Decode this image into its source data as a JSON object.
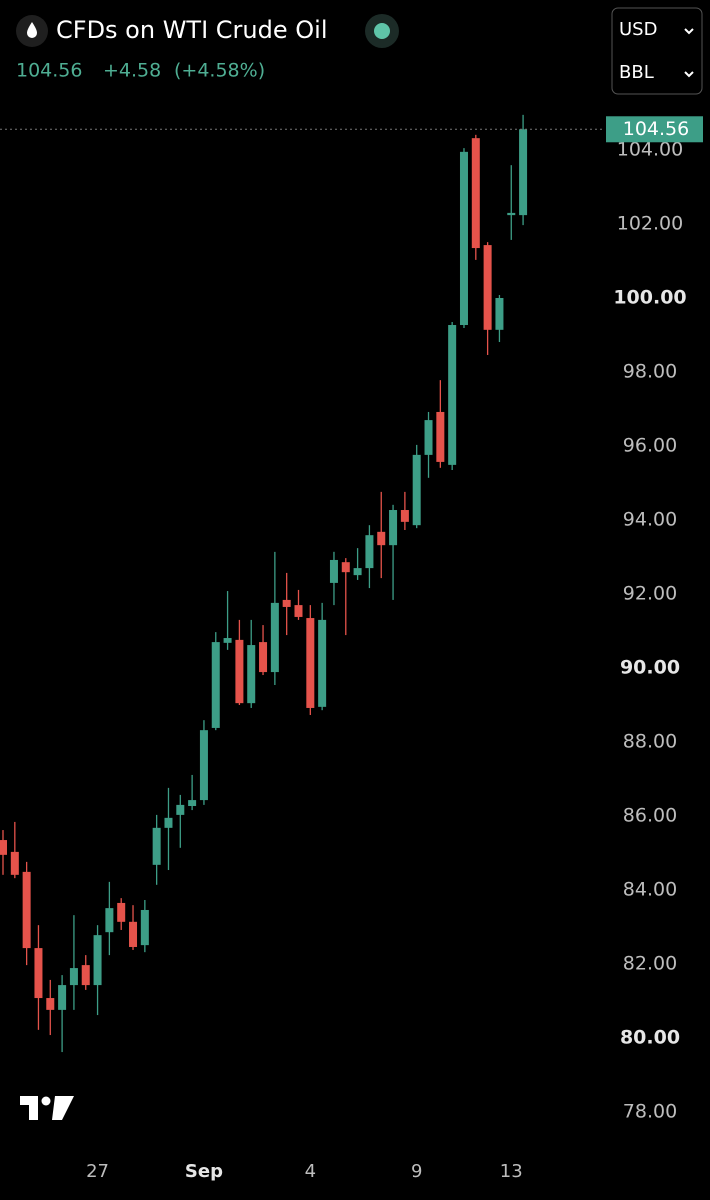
{
  "header": {
    "title": "CFDs on WTI Crude Oil",
    "price": "104.56",
    "change": "+4.58",
    "change_pct": "(+4.58%)"
  },
  "controls": {
    "currency": "USD",
    "unit": "BBL"
  },
  "chart_data": {
    "type": "candlestick",
    "up_color": "#3d9e87",
    "down_color": "#e5534b",
    "categories": [
      null,
      null,
      null,
      null,
      null,
      null,
      null,
      null,
      "27",
      null,
      null,
      null,
      null,
      null,
      null,
      null,
      null,
      "Sep",
      null,
      null,
      null,
      null,
      null,
      null,
      null,
      null,
      "4",
      null,
      null,
      null,
      null,
      null,
      null,
      null,
      null,
      "9",
      null,
      null,
      null,
      null,
      null,
      null,
      null,
      "13",
      null
    ],
    "open": [
      85.35,
      85.03,
      84.49,
      82.43,
      81.08,
      80.76,
      81.43,
      81.97,
      81.43,
      82.86,
      83.65,
      83.14,
      82.51,
      84.68,
      85.68,
      86.03,
      86.27,
      86.43,
      88.38,
      90.68,
      90.76,
      89.05,
      90.7,
      89.89,
      91.84,
      91.7,
      91.35,
      88.95,
      92.3,
      92.86,
      92.51,
      92.7,
      93.68,
      93.32,
      94.27,
      93.86,
      95.76,
      96.92,
      95.49,
      99.27,
      104.32,
      101.43,
      99.14,
      102.24,
      102.24
    ],
    "high": [
      85.62,
      85.84,
      84.76,
      83.05,
      81.57,
      81.7,
      83.32,
      82.24,
      83.05,
      84.22,
      83.78,
      83.59,
      83.73,
      86.03,
      86.76,
      86.57,
      87.11,
      88.59,
      90.97,
      92.08,
      91.3,
      91.3,
      91.16,
      93.14,
      92.57,
      92.11,
      91.7,
      91.76,
      93.14,
      92.97,
      93.24,
      93.86,
      94.76,
      94.41,
      94.76,
      96.03,
      96.92,
      97.78,
      99.35,
      104.05,
      104.41,
      101.51,
      100.08,
      103.59,
      104.95
    ],
    "low": [
      84.41,
      84.32,
      81.97,
      80.22,
      80.08,
      79.62,
      80.76,
      81.3,
      80.62,
      82.24,
      82.92,
      82.38,
      82.32,
      84.14,
      84.54,
      85.14,
      86.16,
      86.3,
      88.32,
      90.49,
      89.0,
      88.92,
      89.81,
      89.54,
      90.89,
      91.3,
      88.73,
      88.86,
      91.7,
      90.89,
      92.38,
      92.16,
      92.43,
      91.84,
      93.73,
      93.78,
      95.14,
      95.41,
      95.35,
      99.19,
      101.03,
      98.46,
      98.81,
      101.57,
      101.97
    ],
    "close": [
      84.95,
      84.41,
      82.43,
      81.08,
      80.76,
      81.43,
      81.89,
      81.43,
      82.78,
      83.51,
      83.14,
      82.46,
      83.46,
      85.68,
      85.95,
      86.3,
      86.43,
      88.32,
      90.7,
      90.81,
      89.05,
      90.62,
      89.89,
      91.76,
      91.65,
      91.38,
      88.92,
      91.3,
      92.92,
      92.59,
      92.7,
      93.59,
      93.32,
      94.27,
      93.95,
      95.76,
      96.7,
      95.57,
      99.27,
      103.95,
      101.35,
      99.14,
      100.0,
      102.3,
      104.56
    ],
    "last_price": 104.56,
    "ylim": [
      77,
      108
    ],
    "yticks": [
      {
        "value": 78,
        "label": "78.00"
      },
      {
        "value": 80,
        "label": "80.00"
      },
      {
        "value": 82,
        "label": "82.00"
      },
      {
        "value": 84,
        "label": "84.00"
      },
      {
        "value": 86,
        "label": "86.00"
      },
      {
        "value": 88,
        "label": "88.00"
      },
      {
        "value": 90,
        "label": "90.00"
      },
      {
        "value": 92,
        "label": "92.00"
      },
      {
        "value": 94,
        "label": "94.00"
      },
      {
        "value": 96,
        "label": "96.00"
      },
      {
        "value": 98,
        "label": "98.00"
      },
      {
        "value": 100,
        "label": "100.00"
      },
      {
        "value": 102,
        "label": "102.00"
      },
      {
        "value": 104,
        "label": "104.00"
      }
    ]
  }
}
